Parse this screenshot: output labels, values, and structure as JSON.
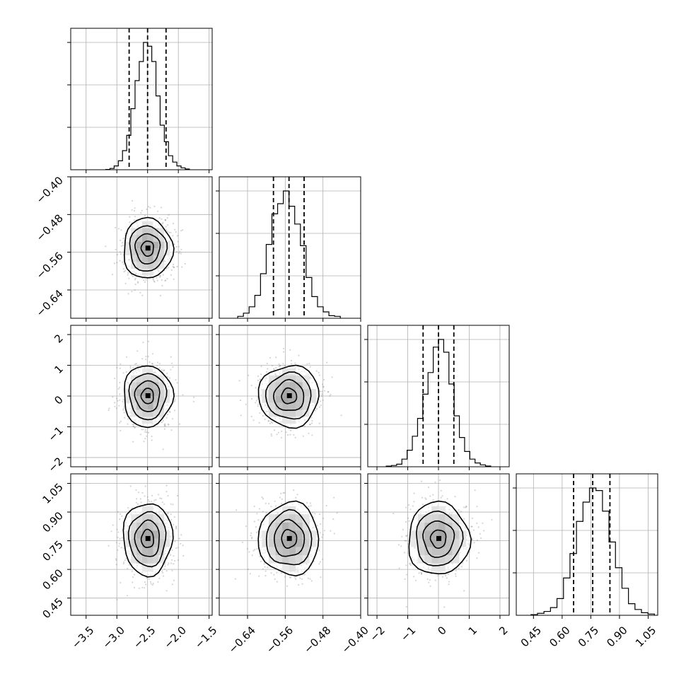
{
  "chart_data": {
    "type": "corner",
    "n_params": 4,
    "grid": true,
    "parameters": [
      {
        "range": [
          -3.75,
          -1.45
        ],
        "ticks": [
          -3.5,
          -3.0,
          -2.5,
          -2.0,
          -1.5
        ],
        "tick_labels": [
          "−3.5",
          "−3.0",
          "−2.5",
          "−2.0",
          "−1.5"
        ],
        "quantiles": [
          -2.8,
          -2.5,
          -2.2
        ],
        "mean": -2.5,
        "sd": 0.2,
        "hist_counts": [
          0.2,
          1,
          3,
          7,
          15,
          27,
          48,
          70,
          85,
          100,
          97,
          85,
          58,
          35,
          22,
          11,
          6,
          3,
          1.5,
          0.6
        ]
      },
      {
        "range": [
          -0.7,
          -0.4
        ],
        "ticks": [
          -0.64,
          -0.56,
          -0.48,
          -0.4
        ],
        "tick_labels": [
          "−0.64",
          "−0.56",
          "−0.48",
          "−0.40"
        ],
        "quantiles": [
          -0.585,
          -0.552,
          -0.52
        ],
        "mean": -0.552,
        "sd": 0.032,
        "hist_counts": [
          1.5,
          4,
          9,
          18,
          35,
          58,
          82,
          90,
          100,
          88,
          74,
          57,
          32,
          17,
          9,
          5,
          2,
          1.5
        ]
      },
      {
        "range": [
          -2.3,
          2.3
        ],
        "ticks": [
          -2,
          -1,
          0,
          1,
          2
        ],
        "tick_labels": [
          "−2",
          "−1",
          "0",
          "1",
          "2"
        ],
        "quantiles": [
          -0.5,
          0.0,
          0.5
        ],
        "mean": 0.0,
        "sd": 0.5,
        "hist_counts": [
          0.5,
          1,
          2,
          6,
          13,
          24,
          38,
          57,
          74,
          94,
          100,
          90,
          65,
          40,
          23,
          12,
          6,
          3,
          1.5,
          0.6
        ]
      },
      {
        "range": [
          0.36,
          1.1
        ],
        "ticks": [
          0.45,
          0.6,
          0.75,
          0.9,
          1.05
        ],
        "tick_labels": [
          "0.45",
          "0.60",
          "0.75",
          "0.90",
          "1.05"
        ],
        "quantiles": [
          0.66,
          0.76,
          0.85
        ],
        "mean": 0.76,
        "sd": 0.095,
        "hist_counts": [
          0.5,
          1.5,
          3,
          6,
          13,
          29,
          48,
          73,
          88,
          99,
          97,
          81,
          57,
          37,
          21,
          9,
          4.5,
          2,
          1
        ]
      }
    ]
  }
}
